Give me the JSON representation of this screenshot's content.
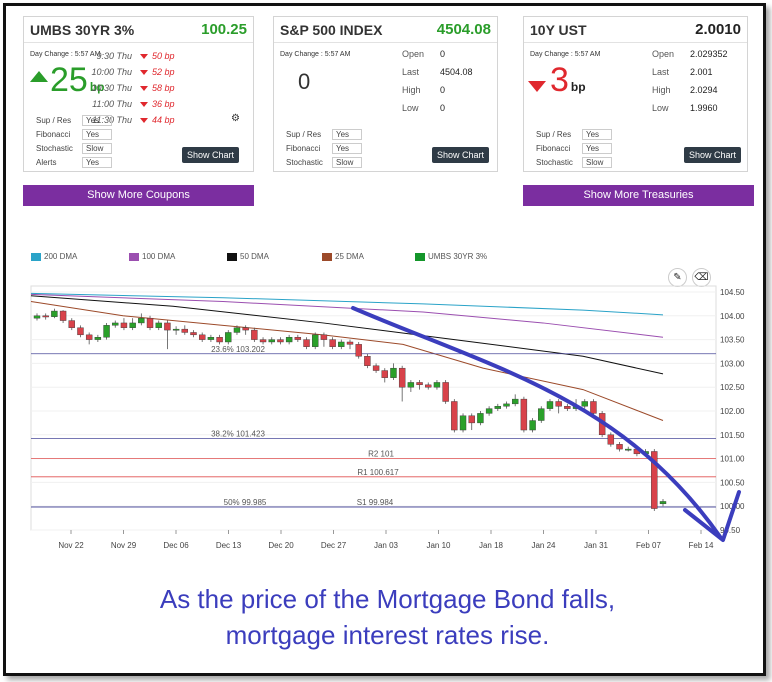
{
  "cards": {
    "umbs": {
      "title": "UMBS 30YR 3%",
      "price": "100.25",
      "day_change_label": "Day Change : 5:57 AM",
      "day_change_value": "25",
      "unit": "bp",
      "times": [
        {
          "time": "9:30 Thu",
          "change": "50 bp"
        },
        {
          "time": "10:00 Thu",
          "change": "52 bp"
        },
        {
          "time": "10:30 Thu",
          "change": "58 bp"
        },
        {
          "time": "11:00 Thu",
          "change": "36 bp"
        },
        {
          "time": "11:30 Thu",
          "change": "44 bp"
        }
      ],
      "studies": [
        {
          "label": "Sup / Res",
          "value": "Yes"
        },
        {
          "label": "Fibonacci",
          "value": "Yes"
        },
        {
          "label": "Stochastic",
          "value": "Slow"
        },
        {
          "label": "Alerts",
          "value": "Yes"
        }
      ],
      "show_chart": "Show Chart",
      "more_button": "Show More Coupons"
    },
    "sp500": {
      "title": "S&P 500 INDEX",
      "price": "4504.08",
      "day_change_label": "Day Change : 5:57 AM",
      "day_change_value": "0",
      "stats": [
        {
          "label": "Open",
          "value": "0"
        },
        {
          "label": "Last",
          "value": "4504.08"
        },
        {
          "label": "High",
          "value": "0"
        },
        {
          "label": "Low",
          "value": "0"
        }
      ],
      "studies": [
        {
          "label": "Sup / Res",
          "value": "Yes"
        },
        {
          "label": "Fibonacci",
          "value": "Yes"
        },
        {
          "label": "Stochastic",
          "value": "Slow"
        }
      ],
      "show_chart": "Show Chart"
    },
    "ust10": {
      "title": "10Y UST",
      "price": "2.0010",
      "day_change_label": "Day Change : 5:57 AM",
      "day_change_value": "3",
      "unit": "bp",
      "stats": [
        {
          "label": "Open",
          "value": "2.029352"
        },
        {
          "label": "Last",
          "value": "2.001"
        },
        {
          "label": "High",
          "value": "2.0294"
        },
        {
          "label": "Low",
          "value": "1.9960"
        }
      ],
      "studies": [
        {
          "label": "Sup / Res",
          "value": "Yes"
        },
        {
          "label": "Fibonacci",
          "value": "Yes"
        },
        {
          "label": "Stochastic",
          "value": "Slow"
        }
      ],
      "show_chart": "Show Chart",
      "more_button": "Show More Treasuries"
    }
  },
  "legend": [
    {
      "name": "200 DMA",
      "color": "#2aa3c8"
    },
    {
      "name": "100 DMA",
      "color": "#9b4fb0"
    },
    {
      "name": "50 DMA",
      "color": "#111111"
    },
    {
      "name": "25 DMA",
      "color": "#9c4a2a"
    },
    {
      "name": "UMBS 30YR 3%",
      "color": "#14962a"
    }
  ],
  "chart_data": {
    "type": "candlestick",
    "y_ticks": [
      "104.50",
      "104.00",
      "103.50",
      "103.00",
      "102.50",
      "102.00",
      "101.50",
      "101.00",
      "100.50",
      "100.00",
      "99.50"
    ],
    "ylim": [
      99.5,
      104.5
    ],
    "x_ticks": [
      "Nov 22",
      "Nov 29",
      "Dec 06",
      "Dec 13",
      "Dec 20",
      "Dec 27",
      "Jan 03",
      "Jan 10",
      "Jan 18",
      "Jan 24",
      "Jan 31",
      "Feb 07",
      "Feb 14"
    ],
    "levels": [
      {
        "label": "23.6% 103.202",
        "value": 103.202,
        "color": "#4a4a9a"
      },
      {
        "label": "38.2% 101.423",
        "value": 101.423,
        "color": "#4a4a9a"
      },
      {
        "label": "R2 101",
        "value": 101.0,
        "color": "#e05050"
      },
      {
        "label": "R1 100.617",
        "value": 100.617,
        "color": "#e05050"
      },
      {
        "label": "50% 99.985",
        "value": 99.985,
        "color": "#4a4a9a"
      },
      {
        "label": "S1 99.984",
        "value": 99.984,
        "color": "#4a4a9a"
      }
    ],
    "candles": [
      [
        103.95,
        104.0,
        104.05,
        103.9
      ],
      [
        104.0,
        103.98,
        104.05,
        103.92
      ],
      [
        103.98,
        104.1,
        104.15,
        103.95
      ],
      [
        104.1,
        103.9,
        104.12,
        103.85
      ],
      [
        103.9,
        103.75,
        103.95,
        103.7
      ],
      [
        103.75,
        103.6,
        103.8,
        103.55
      ],
      [
        103.6,
        103.5,
        103.65,
        103.4
      ],
      [
        103.5,
        103.55,
        103.6,
        103.45
      ],
      [
        103.55,
        103.8,
        103.85,
        103.5
      ],
      [
        103.8,
        103.85,
        103.9,
        103.75
      ],
      [
        103.85,
        103.75,
        103.95,
        103.7
      ],
      [
        103.75,
        103.85,
        103.95,
        103.7
      ],
      [
        103.85,
        103.95,
        104.05,
        103.8
      ],
      [
        103.95,
        103.75,
        104.0,
        103.7
      ],
      [
        103.75,
        103.85,
        103.9,
        103.7
      ],
      [
        103.85,
        103.7,
        103.9,
        103.3
      ],
      [
        103.7,
        103.72,
        103.78,
        103.6
      ],
      [
        103.72,
        103.65,
        103.8,
        103.6
      ],
      [
        103.65,
        103.6,
        103.7,
        103.55
      ],
      [
        103.6,
        103.5,
        103.65,
        103.45
      ],
      [
        103.5,
        103.55,
        103.6,
        103.45
      ],
      [
        103.55,
        103.45,
        103.6,
        103.4
      ],
      [
        103.45,
        103.65,
        103.7,
        103.4
      ],
      [
        103.65,
        103.75,
        103.8,
        103.6
      ],
      [
        103.75,
        103.7,
        103.8,
        103.6
      ],
      [
        103.7,
        103.5,
        103.75,
        103.45
      ],
      [
        103.5,
        103.45,
        103.55,
        103.4
      ],
      [
        103.45,
        103.5,
        103.55,
        103.4
      ],
      [
        103.5,
        103.45,
        103.55,
        103.4
      ],
      [
        103.45,
        103.55,
        103.6,
        103.4
      ],
      [
        103.55,
        103.5,
        103.6,
        103.45
      ],
      [
        103.5,
        103.35,
        103.55,
        103.3
      ],
      [
        103.35,
        103.6,
        103.65,
        103.3
      ],
      [
        103.6,
        103.5,
        103.65,
        103.35
      ],
      [
        103.5,
        103.35,
        103.55,
        103.3
      ],
      [
        103.35,
        103.45,
        103.5,
        103.3
      ],
      [
        103.45,
        103.4,
        103.5,
        103.3
      ],
      [
        103.4,
        103.15,
        103.45,
        103.1
      ],
      [
        103.15,
        102.95,
        103.2,
        102.9
      ],
      [
        102.95,
        102.85,
        103.0,
        102.8
      ],
      [
        102.85,
        102.7,
        102.9,
        102.6
      ],
      [
        102.7,
        102.9,
        103.0,
        102.65
      ],
      [
        102.9,
        102.5,
        102.95,
        102.2
      ],
      [
        102.5,
        102.6,
        102.65,
        102.4
      ],
      [
        102.6,
        102.55,
        102.65,
        102.45
      ],
      [
        102.55,
        102.5,
        102.6,
        102.45
      ],
      [
        102.5,
        102.6,
        102.65,
        102.45
      ],
      [
        102.6,
        102.2,
        102.65,
        102.15
      ],
      [
        102.2,
        101.6,
        102.25,
        101.55
      ],
      [
        101.6,
        101.9,
        101.95,
        101.55
      ],
      [
        101.9,
        101.75,
        101.95,
        101.6
      ],
      [
        101.75,
        101.95,
        102.0,
        101.7
      ],
      [
        101.95,
        102.05,
        102.1,
        101.9
      ],
      [
        102.05,
        102.1,
        102.15,
        102.0
      ],
      [
        102.1,
        102.15,
        102.2,
        102.05
      ],
      [
        102.15,
        102.25,
        102.35,
        102.1
      ],
      [
        102.25,
        101.6,
        102.3,
        101.55
      ],
      [
        101.6,
        101.8,
        101.85,
        101.55
      ],
      [
        101.8,
        102.05,
        102.1,
        101.75
      ],
      [
        102.05,
        102.2,
        102.25,
        102.0
      ],
      [
        102.2,
        102.1,
        102.25,
        101.95
      ],
      [
        102.1,
        102.05,
        102.15,
        102.0
      ],
      [
        102.05,
        102.1,
        102.25,
        102.0
      ],
      [
        102.1,
        102.2,
        102.25,
        102.05
      ],
      [
        102.2,
        101.95,
        102.25,
        101.9
      ],
      [
        101.95,
        101.5,
        102.0,
        101.45
      ],
      [
        101.5,
        101.3,
        101.55,
        101.25
      ],
      [
        101.3,
        101.2,
        101.35,
        101.15
      ],
      [
        101.2,
        101.2,
        101.25,
        101.15
      ],
      [
        101.2,
        101.1,
        101.25,
        101.05
      ],
      [
        101.1,
        101.15,
        101.2,
        101.05
      ],
      [
        101.15,
        99.95,
        101.2,
        99.9
      ],
      [
        100.05,
        100.1,
        100.15,
        100.0
      ]
    ]
  },
  "caption": [
    "As the price of the Mortgage Bond falls,",
    "mortgage interest rates rise."
  ]
}
